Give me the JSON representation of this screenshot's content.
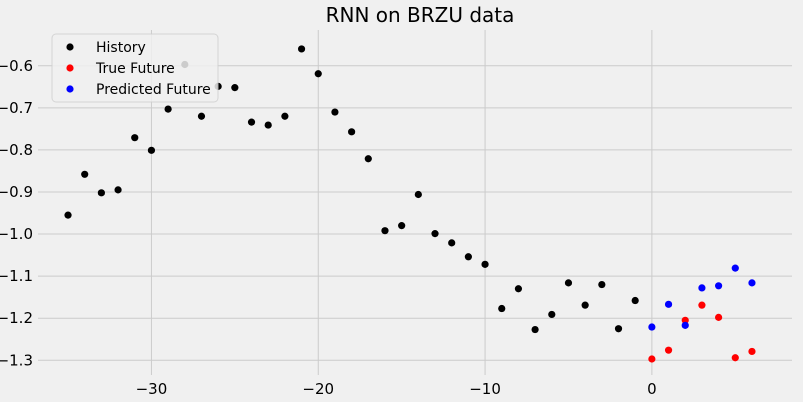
{
  "chart_data": {
    "type": "scatter",
    "title": "RNN on BRZU data",
    "xlabel": "",
    "ylabel": "",
    "xlim": [
      -36.8,
      8.4
    ],
    "ylim": [
      -1.335,
      -0.515
    ],
    "x_ticks": [
      -30,
      -20,
      -10,
      0
    ],
    "x_tick_labels": [
      "−30",
      "−20",
      "−10",
      "0"
    ],
    "y_ticks": [
      -0.6,
      -0.7,
      -0.8,
      -0.9,
      -1.0,
      -1.1,
      -1.2,
      -1.3
    ],
    "y_tick_labels": [
      "−0.6",
      "−0.7",
      "−0.8",
      "−0.9",
      "−1.0",
      "−1.1",
      "−1.2",
      "−1.3"
    ],
    "grid": true,
    "legend_position": "top-left",
    "series": [
      {
        "name": "History",
        "color": "#000000",
        "x": [
          -35,
          -34,
          -33,
          -32,
          -31,
          -30,
          -29,
          -28,
          -27,
          -26,
          -25,
          -24,
          -23,
          -22,
          -21,
          -20,
          -19,
          -18,
          -17,
          -16,
          -15,
          -14,
          -13,
          -12,
          -11,
          -10,
          -9,
          -8,
          -7,
          -6,
          -5,
          -4,
          -3,
          -2,
          -1
        ],
        "y": [
          -0.955,
          -0.858,
          -0.902,
          -0.895,
          -0.771,
          -0.801,
          -0.703,
          -0.597,
          -0.72,
          -0.649,
          -0.652,
          -0.734,
          -0.741,
          -0.72,
          -0.56,
          -0.619,
          -0.71,
          -0.757,
          -0.821,
          -0.992,
          -0.98,
          -0.906,
          -0.999,
          -1.021,
          -1.054,
          -1.072,
          -1.177,
          -1.13,
          -1.227,
          -1.191,
          -1.116,
          -1.169,
          -1.12,
          -1.225,
          -1.158
        ]
      },
      {
        "name": "True Future",
        "color": "#ff0000",
        "x": [
          0,
          1,
          2,
          3,
          4,
          5,
          6
        ],
        "y": [
          -1.297,
          -1.276,
          -1.205,
          -1.169,
          -1.198,
          -1.294,
          -1.279
        ]
      },
      {
        "name": "Predicted Future",
        "color": "#0000ff",
        "x": [
          0,
          1,
          2,
          3,
          4,
          5,
          6
        ],
        "y": [
          -1.221,
          -1.167,
          -1.217,
          -1.128,
          -1.123,
          -1.081,
          -1.116
        ]
      }
    ]
  }
}
